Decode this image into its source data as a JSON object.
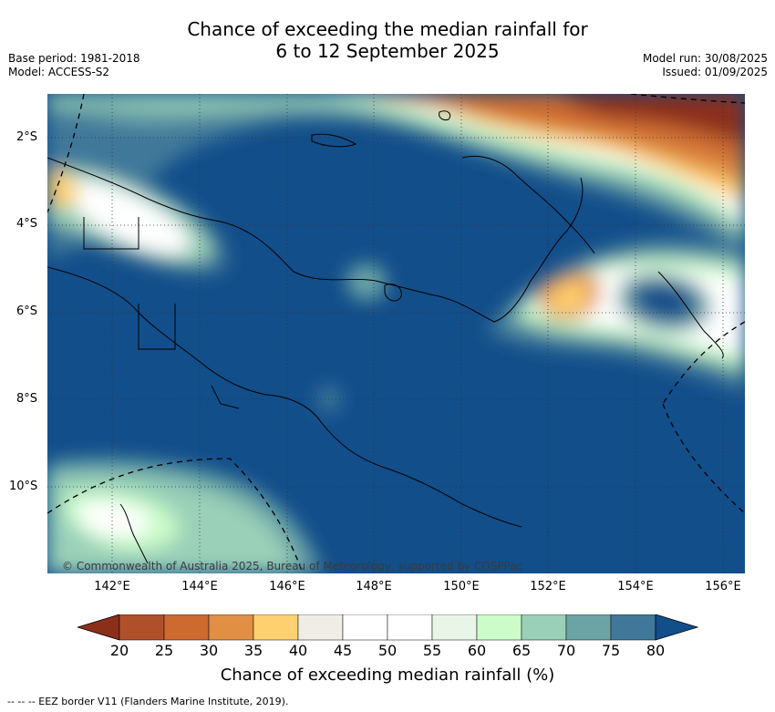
{
  "title_line1": "Chance of exceeding the median rainfall for",
  "title_line2": "6 to 12 September 2025",
  "base_period": "Base period: 1981-2018",
  "model": "Model: ACCESS-S2",
  "model_run": "Model run: 30/08/2025",
  "issued": "Issued: 01/09/2025",
  "copyright": "© Commonwealth of Australia 2025, Bureau of Meteorology, supported by COSPPac",
  "lat_ticks": [
    "2°S",
    "4°S",
    "6°S",
    "8°S",
    "10°S"
  ],
  "lon_ticks": [
    "142°E",
    "144°E",
    "146°E",
    "148°E",
    "150°E",
    "152°E",
    "154°E",
    "156°E"
  ],
  "colorbar": {
    "title": "Chance of exceeding median rainfall (%)",
    "labels": [
      "20",
      "25",
      "30",
      "35",
      "40",
      "45",
      "50",
      "55",
      "60",
      "65",
      "70",
      "75",
      "80"
    ],
    "colors": [
      "#8b2e1a",
      "#b0502a",
      "#cc6a30",
      "#e08f45",
      "#ffd070",
      "#f0ede6",
      "#ffffff",
      "#ffffff",
      "#e9f5e6",
      "#cbfcc9",
      "#9ad0b8",
      "#6ca4a6",
      "#41789a",
      "#124e8a"
    ]
  },
  "eez_note": "--  --  -- EEZ border V11 (Flanders Marine Institute, 2019)."
}
